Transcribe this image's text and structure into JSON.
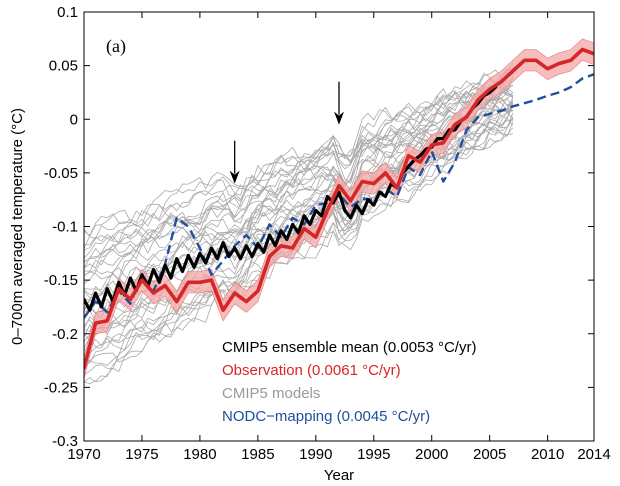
{
  "chart_data": {
    "type": "line",
    "panel_label": "(a)",
    "xlabel": "Year",
    "ylabel": "0–700m averaged temperature (°C)",
    "xlim": [
      1970,
      2014
    ],
    "ylim": [
      -0.3,
      0.1
    ],
    "x_ticks": [
      1970,
      1975,
      1980,
      1985,
      1990,
      1995,
      2000,
      2005,
      2010,
      2014
    ],
    "y_ticks": [
      -0.3,
      -0.25,
      -0.2,
      -0.15,
      -0.1,
      -0.05,
      0,
      0.05,
      0.1
    ],
    "grid": false,
    "legend_position": "bottom-right",
    "legend": [
      {
        "label": "CMIP5 ensemble mean  (0.0053 °C/yr)",
        "color": "#000000"
      },
      {
        "label": "Observation (0.0061 °C/yr)",
        "color": "#d62728"
      },
      {
        "label": "CMIP5 models",
        "color": "#999999"
      },
      {
        "label": "NODC−mapping (0.0045 °C/yr)",
        "color": "#1f4e9e"
      }
    ],
    "annotations": [
      {
        "type": "arrow-down",
        "x": 1983,
        "y_from": -0.02,
        "y_to": -0.06
      },
      {
        "type": "arrow-down",
        "x": 1992,
        "y_from": 0.035,
        "y_to": -0.005
      }
    ],
    "series": [
      {
        "name": "CMIP5 ensemble mean",
        "color": "#000000",
        "style": "solid",
        "x": [
          1970,
          1970.5,
          1971,
          1971.5,
          1972,
          1972.5,
          1973,
          1973.5,
          1974,
          1974.5,
          1975,
          1975.5,
          1976,
          1976.5,
          1977,
          1977.5,
          1978,
          1978.5,
          1979,
          1979.5,
          1980,
          1980.5,
          1981,
          1981.5,
          1982,
          1982.5,
          1983,
          1983.5,
          1984,
          1984.5,
          1985,
          1985.5,
          1986,
          1986.5,
          1987,
          1987.5,
          1988,
          1988.5,
          1989,
          1989.5,
          1990,
          1990.5,
          1991,
          1991.5,
          1992,
          1992.5,
          1993,
          1993.5,
          1994,
          1994.5,
          1995,
          1995.5,
          1996,
          1996.5,
          1997,
          1997.5,
          1998,
          1998.5,
          1999,
          1999.5,
          2000,
          2000.5,
          2001,
          2001.5,
          2002,
          2002.5,
          2003,
          2003.5,
          2004,
          2004.5,
          2005,
          2005.5
        ],
        "y": [
          -0.168,
          -0.178,
          -0.162,
          -0.175,
          -0.158,
          -0.17,
          -0.152,
          -0.164,
          -0.148,
          -0.16,
          -0.145,
          -0.156,
          -0.14,
          -0.152,
          -0.136,
          -0.148,
          -0.13,
          -0.142,
          -0.127,
          -0.138,
          -0.125,
          -0.134,
          -0.12,
          -0.13,
          -0.115,
          -0.128,
          -0.12,
          -0.13,
          -0.118,
          -0.128,
          -0.116,
          -0.124,
          -0.108,
          -0.118,
          -0.104,
          -0.112,
          -0.098,
          -0.106,
          -0.09,
          -0.098,
          -0.085,
          -0.09,
          -0.072,
          -0.078,
          -0.068,
          -0.085,
          -0.092,
          -0.08,
          -0.088,
          -0.075,
          -0.08,
          -0.068,
          -0.072,
          -0.06,
          -0.064,
          -0.05,
          -0.044,
          -0.038,
          -0.034,
          -0.028,
          -0.026,
          -0.018,
          -0.018,
          -0.01,
          -0.01,
          -0.002,
          0.002,
          0.01,
          0.015,
          0.022,
          0.025,
          0.03
        ]
      },
      {
        "name": "Observation",
        "color": "#d62728",
        "style": "solid",
        "band_halfwidth": 0.01,
        "x": [
          1970,
          1971,
          1972,
          1973,
          1974,
          1975,
          1976,
          1977,
          1978,
          1979,
          1980,
          1981,
          1982,
          1983,
          1984,
          1985,
          1986,
          1987,
          1988,
          1989,
          1990,
          1991,
          1992,
          1993,
          1994,
          1995,
          1996,
          1997,
          1998,
          1999,
          2000,
          2001,
          2002,
          2003,
          2004,
          2005,
          2006,
          2007,
          2008,
          2009,
          2010,
          2011,
          2012,
          2013,
          2014
        ],
        "y": [
          -0.232,
          -0.19,
          -0.188,
          -0.158,
          -0.168,
          -0.15,
          -0.162,
          -0.155,
          -0.17,
          -0.152,
          -0.152,
          -0.15,
          -0.178,
          -0.162,
          -0.17,
          -0.16,
          -0.128,
          -0.118,
          -0.12,
          -0.102,
          -0.11,
          -0.085,
          -0.062,
          -0.076,
          -0.058,
          -0.06,
          -0.05,
          -0.064,
          -0.034,
          -0.04,
          -0.024,
          -0.022,
          -0.005,
          0.002,
          0.018,
          0.028,
          0.035,
          0.045,
          0.055,
          0.055,
          0.047,
          0.052,
          0.055,
          0.065,
          0.061
        ]
      },
      {
        "name": "NODC-mapping",
        "color": "#1f4e9e",
        "style": "dashed",
        "x": [
          1970,
          1971,
          1972,
          1973,
          1974,
          1975,
          1976,
          1977,
          1978,
          1979,
          1980,
          1981,
          1982,
          1983,
          1984,
          1985,
          1986,
          1987,
          1988,
          1989,
          1990,
          1991,
          1992,
          1993,
          1994,
          1995,
          1996,
          1997,
          1998,
          1999,
          2000,
          2001,
          2002,
          2003,
          2004,
          2005,
          2006,
          2007,
          2008,
          2009,
          2010,
          2011,
          2012,
          2013,
          2014
        ],
        "y": [
          -0.185,
          -0.17,
          -0.18,
          -0.16,
          -0.172,
          -0.145,
          -0.16,
          -0.135,
          -0.092,
          -0.1,
          -0.12,
          -0.145,
          -0.132,
          -0.118,
          -0.108,
          -0.12,
          -0.098,
          -0.11,
          -0.092,
          -0.098,
          -0.08,
          -0.078,
          -0.07,
          -0.082,
          -0.074,
          -0.075,
          -0.065,
          -0.072,
          -0.045,
          -0.052,
          -0.03,
          -0.058,
          -0.04,
          -0.01,
          0.002,
          0.005,
          0.008,
          0.012,
          0.015,
          0.018,
          0.022,
          0.025,
          0.03,
          0.038,
          0.042
        ]
      }
    ],
    "model_ensemble": {
      "name": "CMIP5 models",
      "color": "#aaaaaa",
      "count": 38,
      "x_start": 1970,
      "x_end": 2007,
      "spread_start": [
        -0.245,
        -0.105
      ],
      "spread_end": [
        -0.005,
        0.045
      ]
    }
  }
}
